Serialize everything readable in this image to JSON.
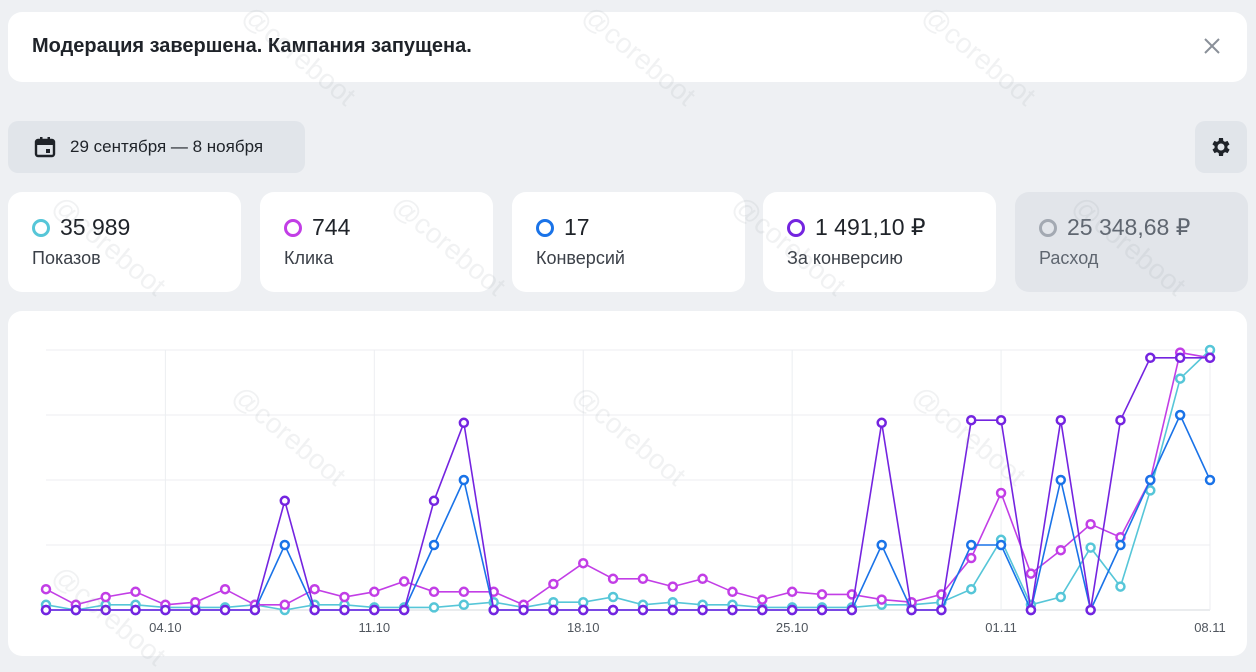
{
  "notice": {
    "text": "Модерация завершена. Кампания запущена."
  },
  "date_range": "29 сентября — 8 ноября",
  "watermark": "@coreboot",
  "metrics": [
    {
      "value": "35 989",
      "label": "Показов",
      "color": "#56c6d8",
      "active": true
    },
    {
      "value": "744",
      "label": "Клика",
      "color": "#c23ee6",
      "active": true
    },
    {
      "value": "17",
      "label": "Конверсий",
      "color": "#1a73e8",
      "active": true
    },
    {
      "value": "1 491,10 ₽",
      "label": "За конверсию",
      "color": "#7424e0",
      "active": true
    },
    {
      "value": "25 348,68 ₽",
      "label": "Расход",
      "color": "#a3a9b2",
      "active": false
    }
  ],
  "chart_data": {
    "type": "line",
    "categories": [
      null,
      null,
      null,
      null,
      "04.10",
      null,
      null,
      null,
      null,
      null,
      null,
      "11.10",
      null,
      null,
      null,
      null,
      null,
      null,
      "18.10",
      null,
      null,
      null,
      null,
      null,
      null,
      "25.10",
      null,
      null,
      null,
      null,
      null,
      null,
      "01.11",
      null,
      null,
      null,
      null,
      null,
      null,
      "08.11"
    ],
    "ylim": [
      0,
      100
    ],
    "ygrid": [
      0,
      25,
      50,
      75,
      100
    ],
    "grid": true,
    "series": [
      {
        "color": "#56c6d8",
        "values": [
          2,
          0,
          2,
          2,
          1,
          1,
          1,
          2,
          0,
          2,
          2,
          1,
          1,
          1,
          2,
          3,
          1,
          3,
          3,
          5,
          2,
          3,
          2,
          2,
          1,
          1,
          1,
          1,
          2,
          2,
          3,
          8,
          27,
          2,
          5,
          24,
          9,
          46,
          89,
          100
        ]
      },
      {
        "color": "#c23ee6",
        "values": [
          8,
          2,
          5,
          7,
          2,
          3,
          8,
          2,
          2,
          8,
          5,
          7,
          11,
          7,
          7,
          7,
          2,
          10,
          18,
          12,
          12,
          9,
          12,
          7,
          4,
          7,
          6,
          6,
          4,
          3,
          6,
          20,
          45,
          14,
          23,
          33,
          28,
          50,
          99,
          97
        ]
      },
      {
        "color": "#1a73e8",
        "values": [
          0,
          0,
          0,
          0,
          0,
          0,
          0,
          0,
          25,
          0,
          0,
          0,
          0,
          25,
          50,
          0,
          0,
          0,
          0,
          0,
          0,
          0,
          0,
          0,
          0,
          0,
          0,
          0,
          25,
          0,
          0,
          25,
          25,
          0,
          50,
          0,
          25,
          50,
          75,
          50
        ]
      },
      {
        "color": "#7424e0",
        "values": [
          0,
          0,
          0,
          0,
          0,
          0,
          0,
          0,
          42,
          0,
          0,
          0,
          0,
          42,
          72,
          0,
          0,
          0,
          0,
          0,
          0,
          0,
          0,
          0,
          0,
          0,
          0,
          0,
          72,
          0,
          0,
          73,
          73,
          0,
          73,
          0,
          73,
          97,
          97,
          97
        ]
      }
    ]
  }
}
